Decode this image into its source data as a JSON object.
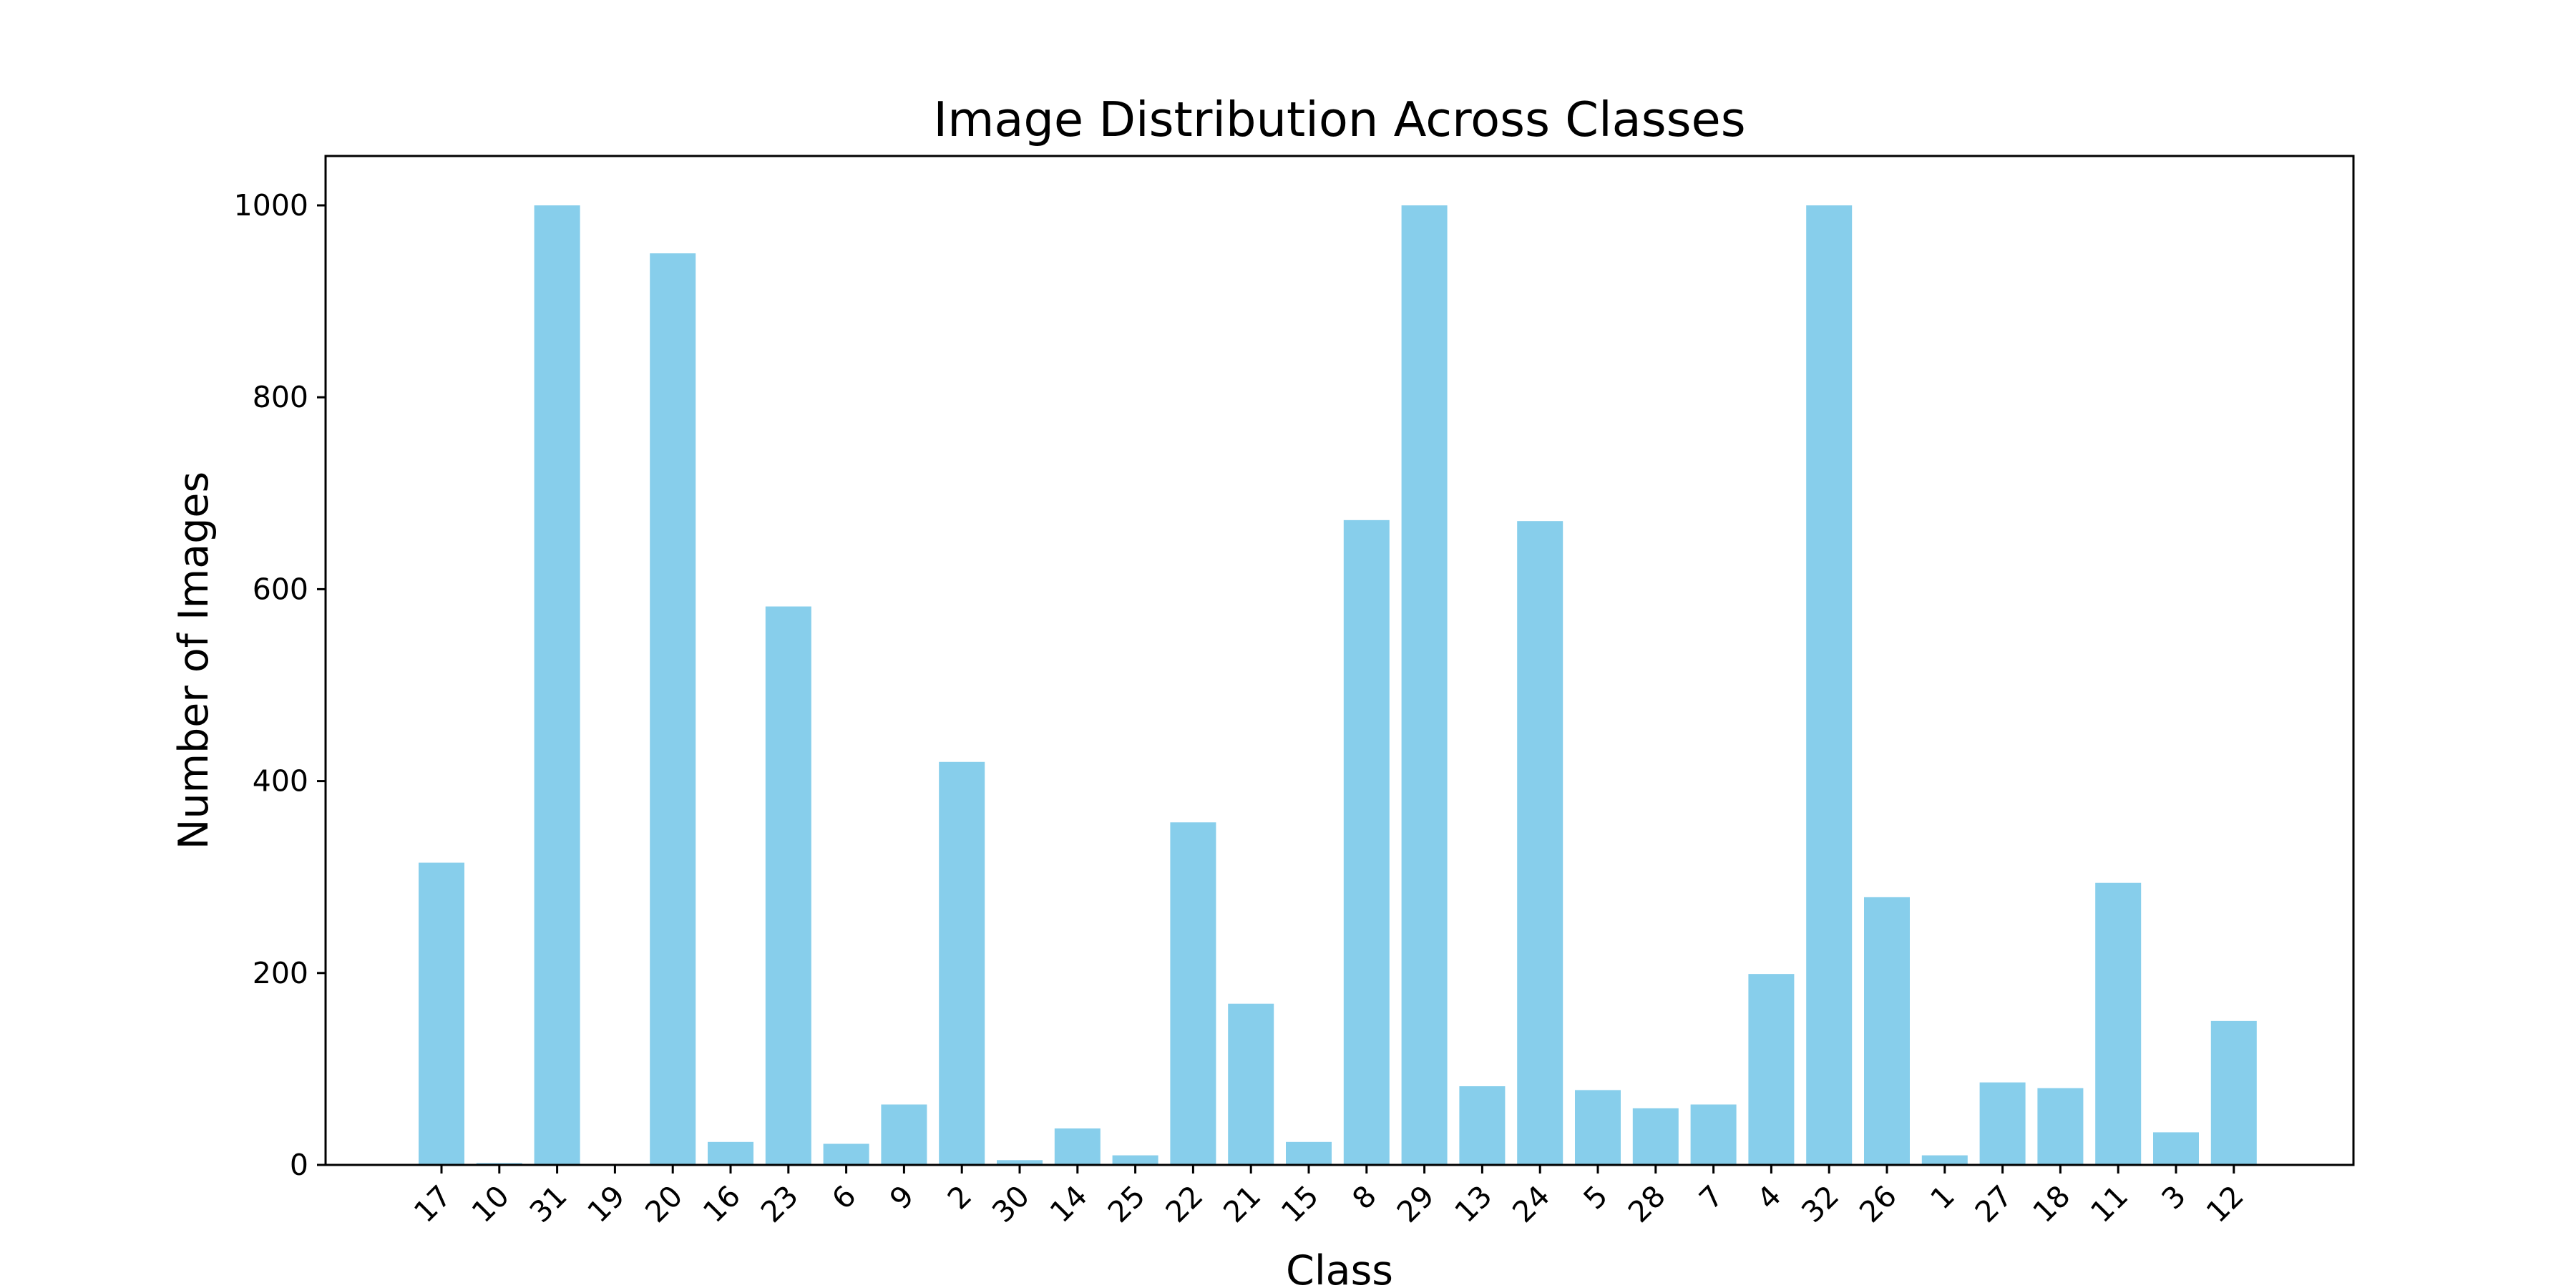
{
  "chart_data": {
    "type": "bar",
    "title": "Image Distribution Across Classes",
    "xlabel": "Class",
    "ylabel": "Number of Images",
    "categories": [
      "17",
      "10",
      "31",
      "19",
      "20",
      "16",
      "23",
      "6",
      "9",
      "2",
      "30",
      "14",
      "25",
      "22",
      "21",
      "15",
      "8",
      "29",
      "13",
      "24",
      "5",
      "28",
      "7",
      "4",
      "32",
      "26",
      "1",
      "27",
      "18",
      "11",
      "3",
      "12"
    ],
    "values": [
      315,
      2,
      1000,
      0,
      950,
      24,
      582,
      22,
      63,
      420,
      5,
      38,
      10,
      357,
      168,
      24,
      672,
      1000,
      82,
      671,
      78,
      59,
      63,
      199,
      1000,
      279,
      10,
      86,
      80,
      294,
      34,
      150
    ],
    "yticks": [
      0,
      200,
      400,
      600,
      800,
      1000
    ],
    "ylim": [
      0,
      1050
    ],
    "bar_color": "#87ceeb",
    "grid": false,
    "legend": "none"
  }
}
